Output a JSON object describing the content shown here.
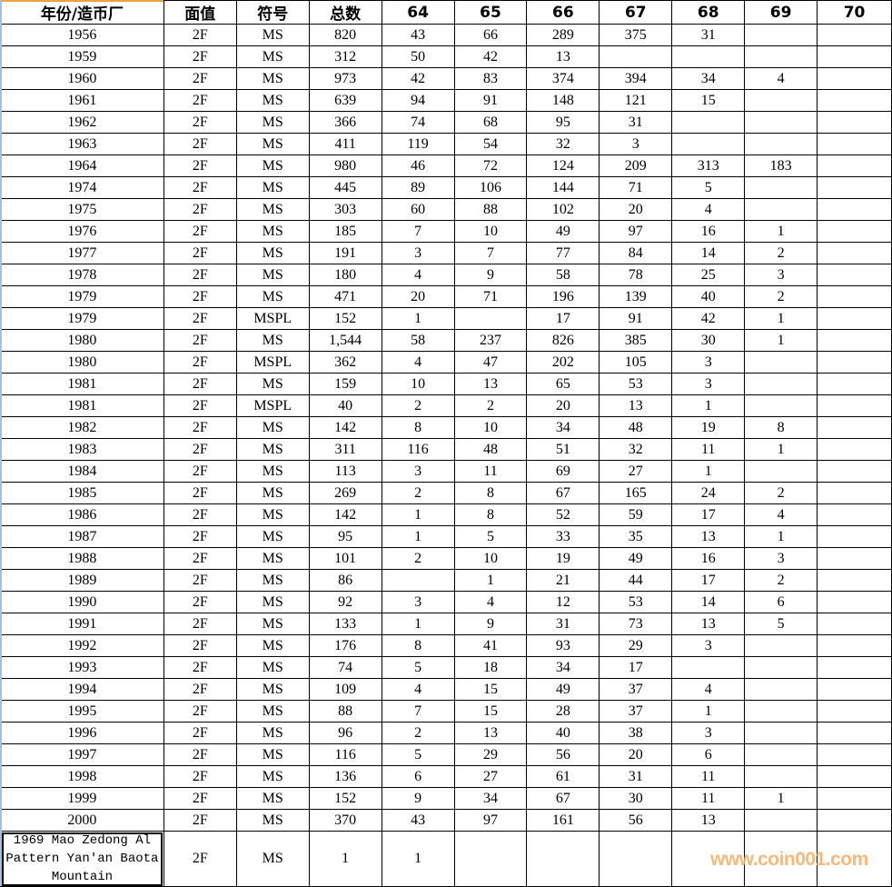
{
  "headers": [
    "年份/造币厂",
    "面值",
    "符号",
    "总数",
    "64",
    "65",
    "66",
    "67",
    "68",
    "69",
    "70"
  ],
  "rows": [
    [
      "1956",
      "2F",
      "MS",
      "820",
      "43",
      "66",
      "289",
      "375",
      "31",
      "",
      ""
    ],
    [
      "1959",
      "2F",
      "MS",
      "312",
      "50",
      "42",
      "13",
      "",
      "",
      "",
      ""
    ],
    [
      "1960",
      "2F",
      "MS",
      "973",
      "42",
      "83",
      "374",
      "394",
      "34",
      "4",
      ""
    ],
    [
      "1961",
      "2F",
      "MS",
      "639",
      "94",
      "91",
      "148",
      "121",
      "15",
      "",
      ""
    ],
    [
      "1962",
      "2F",
      "MS",
      "366",
      "74",
      "68",
      "95",
      "31",
      "",
      "",
      ""
    ],
    [
      "1963",
      "2F",
      "MS",
      "411",
      "119",
      "54",
      "32",
      "3",
      "",
      "",
      ""
    ],
    [
      "1964",
      "2F",
      "MS",
      "980",
      "46",
      "72",
      "124",
      "209",
      "313",
      "183",
      ""
    ],
    [
      "1974",
      "2F",
      "MS",
      "445",
      "89",
      "106",
      "144",
      "71",
      "5",
      "",
      ""
    ],
    [
      "1975",
      "2F",
      "MS",
      "303",
      "60",
      "88",
      "102",
      "20",
      "4",
      "",
      ""
    ],
    [
      "1976",
      "2F",
      "MS",
      "185",
      "7",
      "10",
      "49",
      "97",
      "16",
      "1",
      ""
    ],
    [
      "1977",
      "2F",
      "MS",
      "191",
      "3",
      "7",
      "77",
      "84",
      "14",
      "2",
      ""
    ],
    [
      "1978",
      "2F",
      "MS",
      "180",
      "4",
      "9",
      "58",
      "78",
      "25",
      "3",
      ""
    ],
    [
      "1979",
      "2F",
      "MS",
      "471",
      "20",
      "71",
      "196",
      "139",
      "40",
      "2",
      ""
    ],
    [
      "1979",
      "2F",
      "MSPL",
      "152",
      "1",
      "",
      "17",
      "91",
      "42",
      "1",
      ""
    ],
    [
      "1980",
      "2F",
      "MS",
      "1,544",
      "58",
      "237",
      "826",
      "385",
      "30",
      "1",
      ""
    ],
    [
      "1980",
      "2F",
      "MSPL",
      "362",
      "4",
      "47",
      "202",
      "105",
      "3",
      "",
      ""
    ],
    [
      "1981",
      "2F",
      "MS",
      "159",
      "10",
      "13",
      "65",
      "53",
      "3",
      "",
      ""
    ],
    [
      "1981",
      "2F",
      "MSPL",
      "40",
      "2",
      "2",
      "20",
      "13",
      "1",
      "",
      ""
    ],
    [
      "1982",
      "2F",
      "MS",
      "142",
      "8",
      "10",
      "34",
      "48",
      "19",
      "8",
      ""
    ],
    [
      "1983",
      "2F",
      "MS",
      "311",
      "116",
      "48",
      "51",
      "32",
      "11",
      "1",
      ""
    ],
    [
      "1984",
      "2F",
      "MS",
      "113",
      "3",
      "11",
      "69",
      "27",
      "1",
      "",
      ""
    ],
    [
      "1985",
      "2F",
      "MS",
      "269",
      "2",
      "8",
      "67",
      "165",
      "24",
      "2",
      ""
    ],
    [
      "1986",
      "2F",
      "MS",
      "142",
      "1",
      "8",
      "52",
      "59",
      "17",
      "4",
      ""
    ],
    [
      "1987",
      "2F",
      "MS",
      "95",
      "1",
      "5",
      "33",
      "35",
      "13",
      "1",
      ""
    ],
    [
      "1988",
      "2F",
      "MS",
      "101",
      "2",
      "10",
      "19",
      "49",
      "16",
      "3",
      ""
    ],
    [
      "1989",
      "2F",
      "MS",
      "86",
      "",
      "1",
      "21",
      "44",
      "17",
      "2",
      ""
    ],
    [
      "1990",
      "2F",
      "MS",
      "92",
      "3",
      "4",
      "12",
      "53",
      "14",
      "6",
      ""
    ],
    [
      "1991",
      "2F",
      "MS",
      "133",
      "1",
      "9",
      "31",
      "73",
      "13",
      "5",
      ""
    ],
    [
      "1992",
      "2F",
      "MS",
      "176",
      "8",
      "41",
      "93",
      "29",
      "3",
      "",
      ""
    ],
    [
      "1993",
      "2F",
      "MS",
      "74",
      "5",
      "18",
      "34",
      "17",
      "",
      "",
      ""
    ],
    [
      "1994",
      "2F",
      "MS",
      "109",
      "4",
      "15",
      "49",
      "37",
      "4",
      "",
      ""
    ],
    [
      "1995",
      "2F",
      "MS",
      "88",
      "7",
      "15",
      "28",
      "37",
      "1",
      "",
      ""
    ],
    [
      "1996",
      "2F",
      "MS",
      "96",
      "2",
      "13",
      "40",
      "38",
      "3",
      "",
      ""
    ],
    [
      "1997",
      "2F",
      "MS",
      "116",
      "5",
      "29",
      "56",
      "20",
      "6",
      "",
      ""
    ],
    [
      "1998",
      "2F",
      "MS",
      "136",
      "6",
      "27",
      "61",
      "31",
      "11",
      "",
      ""
    ],
    [
      "1999",
      "2F",
      "MS",
      "152",
      "9",
      "34",
      "67",
      "30",
      "11",
      "1",
      ""
    ],
    [
      "2000",
      "2F",
      "MS",
      "370",
      "43",
      "97",
      "161",
      "56",
      "13",
      "",
      ""
    ],
    [
      "1969 Mao Zedong Al Pattern Yan'an Baota Mountain",
      "2F",
      "MS",
      "1",
      "1",
      "",
      "",
      "",
      "",
      "",
      ""
    ]
  ],
  "watermark": "www.coin001.com",
  "colors": {
    "selection_accent": "#f0a040",
    "watermark": "#f7b26a"
  }
}
